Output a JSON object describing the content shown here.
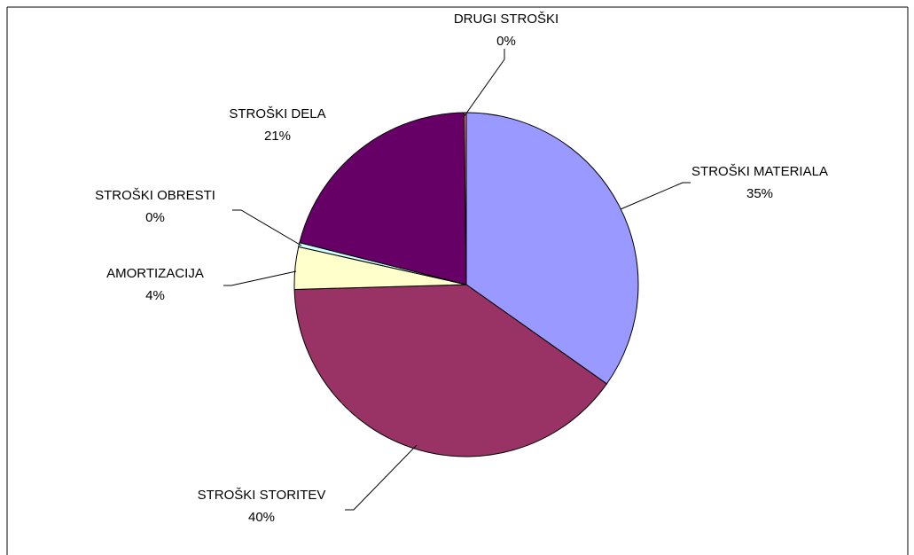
{
  "chart_data": {
    "type": "pie",
    "title": "",
    "legend": "none",
    "slices": [
      {
        "label": "STROŠKI MATERIALA",
        "value": 35,
        "display": "35%",
        "color": "#9999ff"
      },
      {
        "label": "STROŠKI STORITEV",
        "value": 40,
        "display": "40%",
        "color": "#993366"
      },
      {
        "label": "AMORTIZACIJA",
        "value": 4,
        "display": "4%",
        "color": "#ffffcc"
      },
      {
        "label": "STROŠKI OBRESTI",
        "value": 0.4,
        "display": "0%",
        "color": "#ccffff"
      },
      {
        "label": "STROŠKI DELA",
        "value": 21,
        "display": "21%",
        "color": "#660066"
      },
      {
        "label": "DRUGI STROŠKI",
        "value": 0.2,
        "display": "0%",
        "color": "#ff8080"
      }
    ]
  }
}
